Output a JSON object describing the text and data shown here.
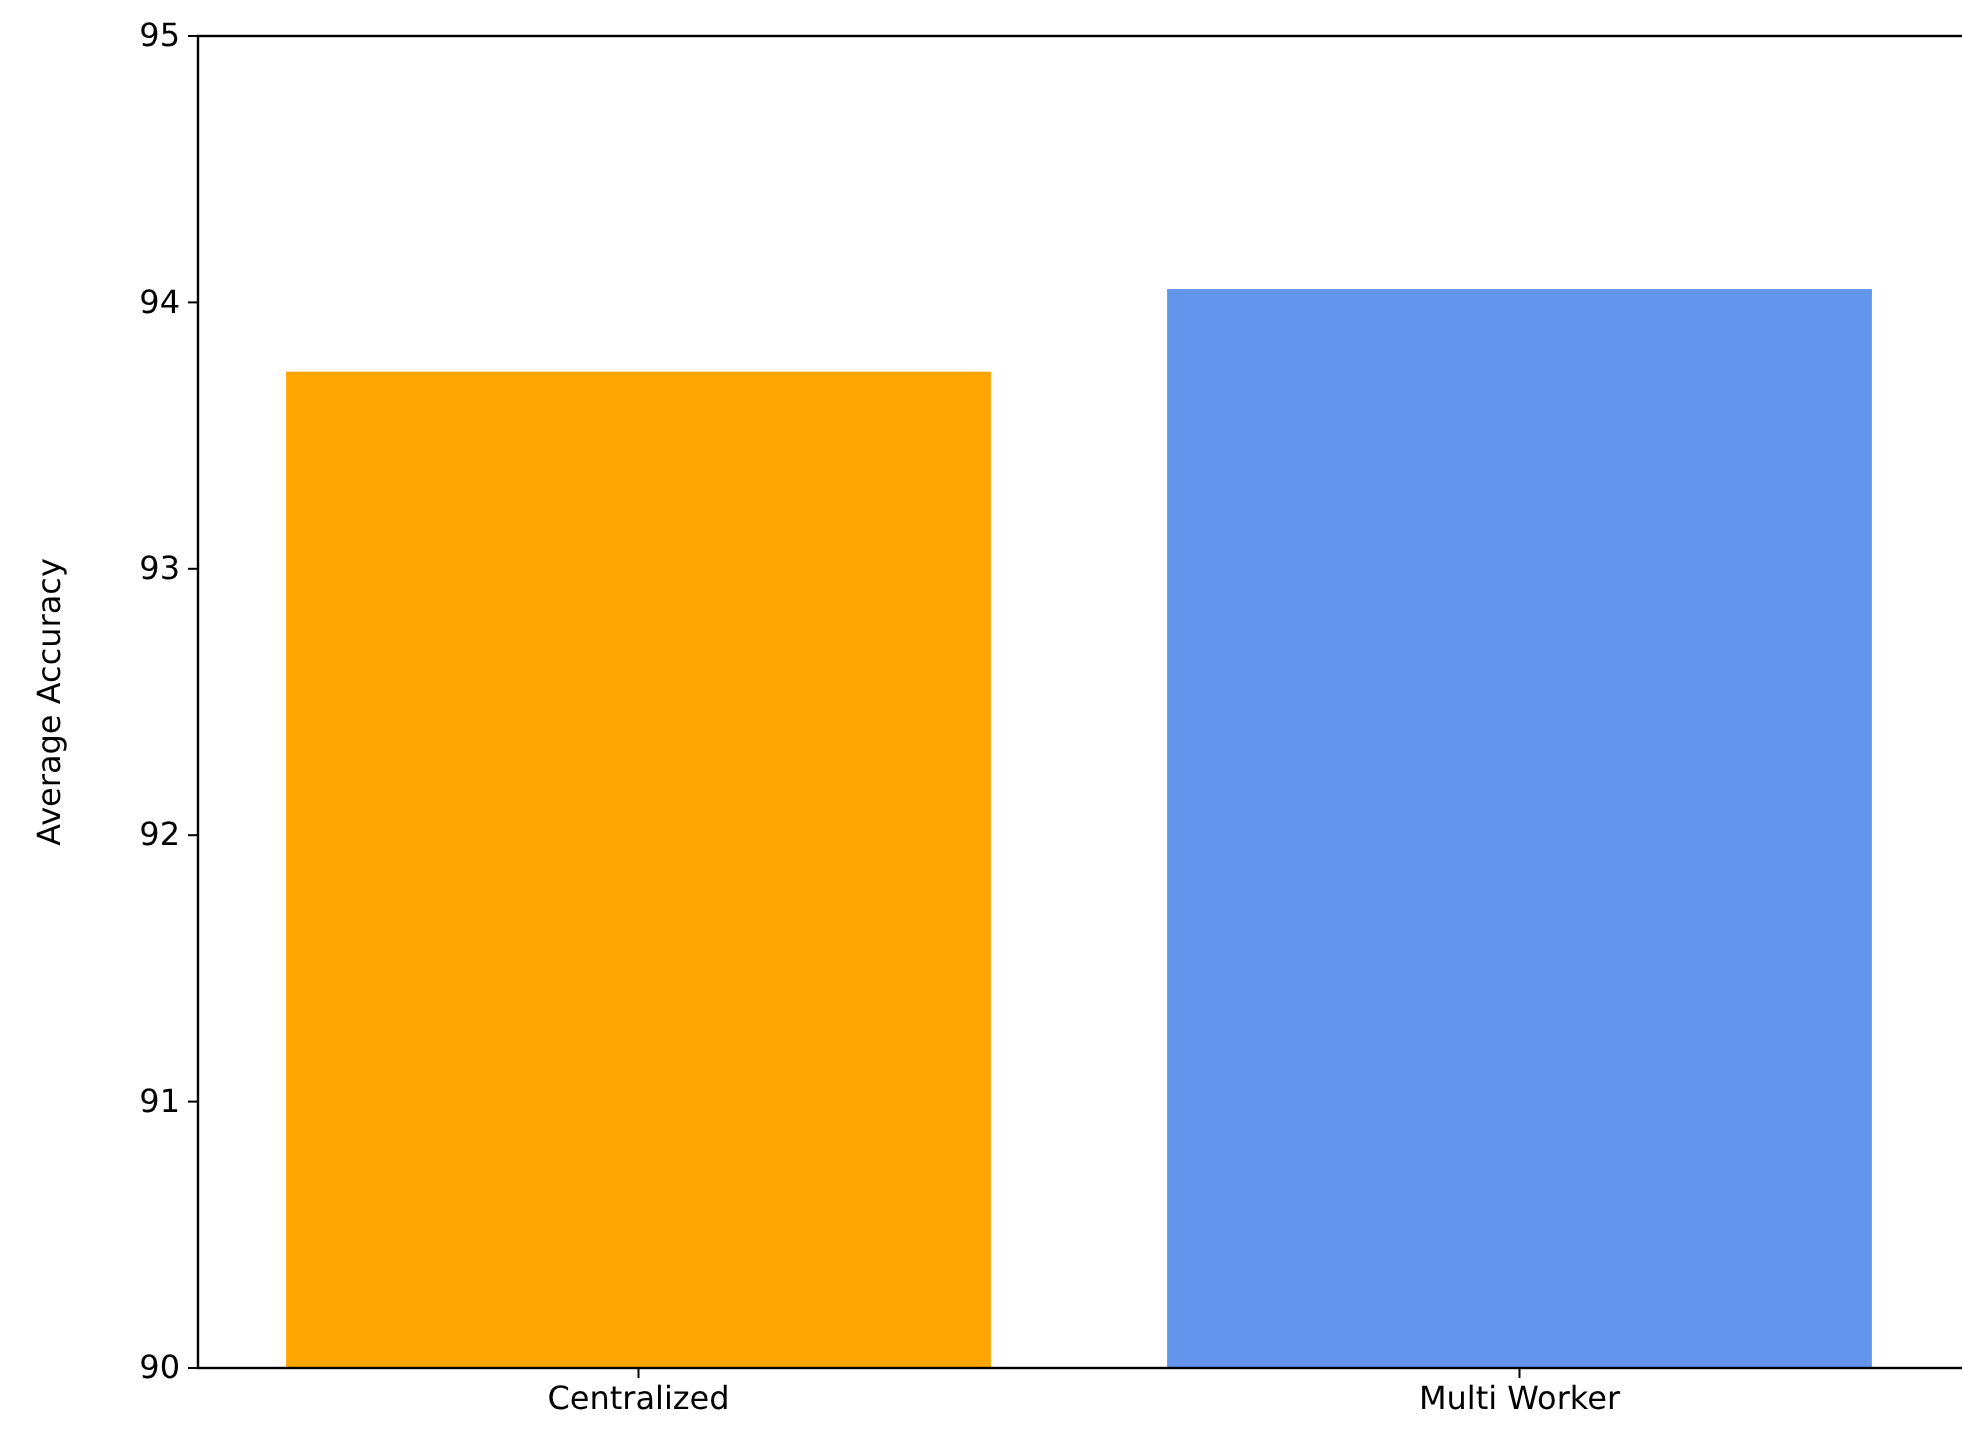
{
  "chart_data": {
    "type": "bar",
    "ylabel": "Average Accuracy",
    "categories": [
      "Centralized",
      "Multi Worker"
    ],
    "values": [
      93.74,
      94.05
    ],
    "colors": [
      "#ffa500",
      "#6495ed"
    ],
    "ylim": [
      90,
      95
    ],
    "yticks": [
      90,
      91,
      92,
      93,
      94,
      95
    ],
    "grid": false
  }
}
